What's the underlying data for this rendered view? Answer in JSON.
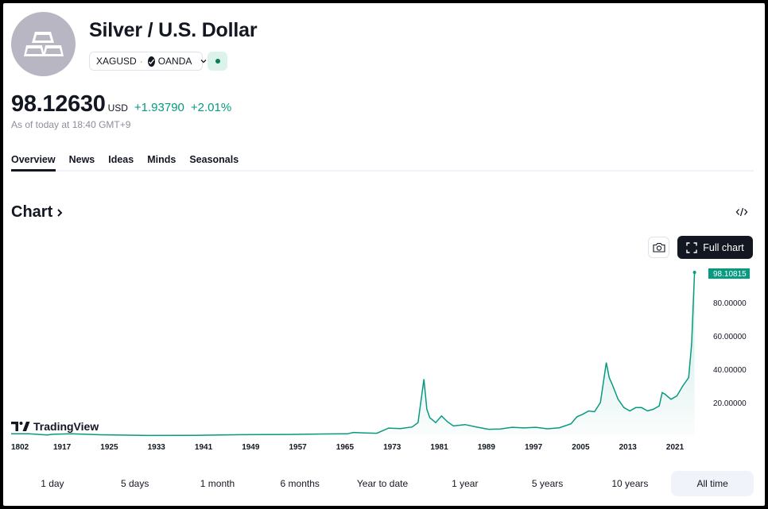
{
  "header": {
    "title": "Silver / U.S. Dollar",
    "symbol": "XAGUSD",
    "exchange": "OANDA",
    "separator": "·",
    "logo_icon": "silver-bars-icon",
    "status_color": "#0b7a5c"
  },
  "quote": {
    "price": "98.12630",
    "currency": "USD",
    "change": "+1.93790",
    "change_pct": "+2.01%",
    "as_of": "As of today at 18:40 GMT+9",
    "up_color": "#089981"
  },
  "tabs": [
    {
      "label": "Overview",
      "active": true
    },
    {
      "label": "News",
      "active": false
    },
    {
      "label": "Ideas",
      "active": false
    },
    {
      "label": "Minds",
      "active": false
    },
    {
      "label": "Seasonals",
      "active": false
    }
  ],
  "chart_section": {
    "heading": "Chart",
    "full_chart_label": "Full chart",
    "watermark": "TradingView"
  },
  "chart_data": {
    "type": "area",
    "line_color": "#089981",
    "last_value_label": "98.10815",
    "x_ticks": [
      "1802",
      "1917",
      "1925",
      "1933",
      "1941",
      "1949",
      "1957",
      "1965",
      "1973",
      "1981",
      "1989",
      "1997",
      "2005",
      "2013",
      "2021"
    ],
    "y_ticks": [
      "20.00000",
      "40.00000",
      "60.00000",
      "80.00000"
    ],
    "y_tick_values": [
      20,
      40,
      60,
      80
    ],
    "ylim": [
      0,
      100
    ],
    "series": [
      {
        "x": [
          1802,
          1850,
          1900,
          1917,
          1920,
          1925,
          1933,
          1941,
          1949,
          1957,
          1963,
          1967,
          1968,
          1970,
          1972,
          1974,
          1976,
          1978,
          1979,
          1980,
          1980.5,
          1981,
          1982,
          1983,
          1984,
          1985,
          1987,
          1989,
          1991,
          1993,
          1995,
          1997,
          1999,
          2001,
          2003,
          2005,
          2006,
          2007,
          2008,
          2009,
          2010,
          2011,
          2011.5,
          2012,
          2013,
          2014,
          2015,
          2016,
          2017,
          2018,
          2019,
          2020,
          2020.5,
          2021,
          2022,
          2023,
          2024,
          2025,
          2025.5,
          2026
        ],
        "y": [
          1.3,
          1.3,
          0.6,
          1.0,
          1.3,
          0.7,
          0.3,
          0.35,
          0.75,
          0.9,
          1.2,
          1.29,
          2.1,
          1.8,
          1.6,
          4.7,
          4.4,
          5.4,
          8,
          34,
          16,
          11,
          8,
          12,
          8.5,
          6,
          6.8,
          5.3,
          4,
          4.2,
          5.2,
          4.8,
          5.2,
          4.3,
          4.9,
          7.3,
          11.5,
          13,
          15,
          14.5,
          20,
          44,
          35,
          31,
          22,
          17,
          15,
          17,
          17,
          15,
          16,
          18,
          26,
          25,
          22,
          24,
          30,
          35,
          55,
          98.1
        ]
      }
    ]
  },
  "ranges": [
    {
      "label": "1 day",
      "active": false
    },
    {
      "label": "5 days",
      "active": false
    },
    {
      "label": "1 month",
      "active": false
    },
    {
      "label": "6 months",
      "active": false
    },
    {
      "label": "Year to date",
      "active": false
    },
    {
      "label": "1 year",
      "active": false
    },
    {
      "label": "5 years",
      "active": false
    },
    {
      "label": "10 years",
      "active": false
    },
    {
      "label": "All time",
      "active": true
    }
  ]
}
